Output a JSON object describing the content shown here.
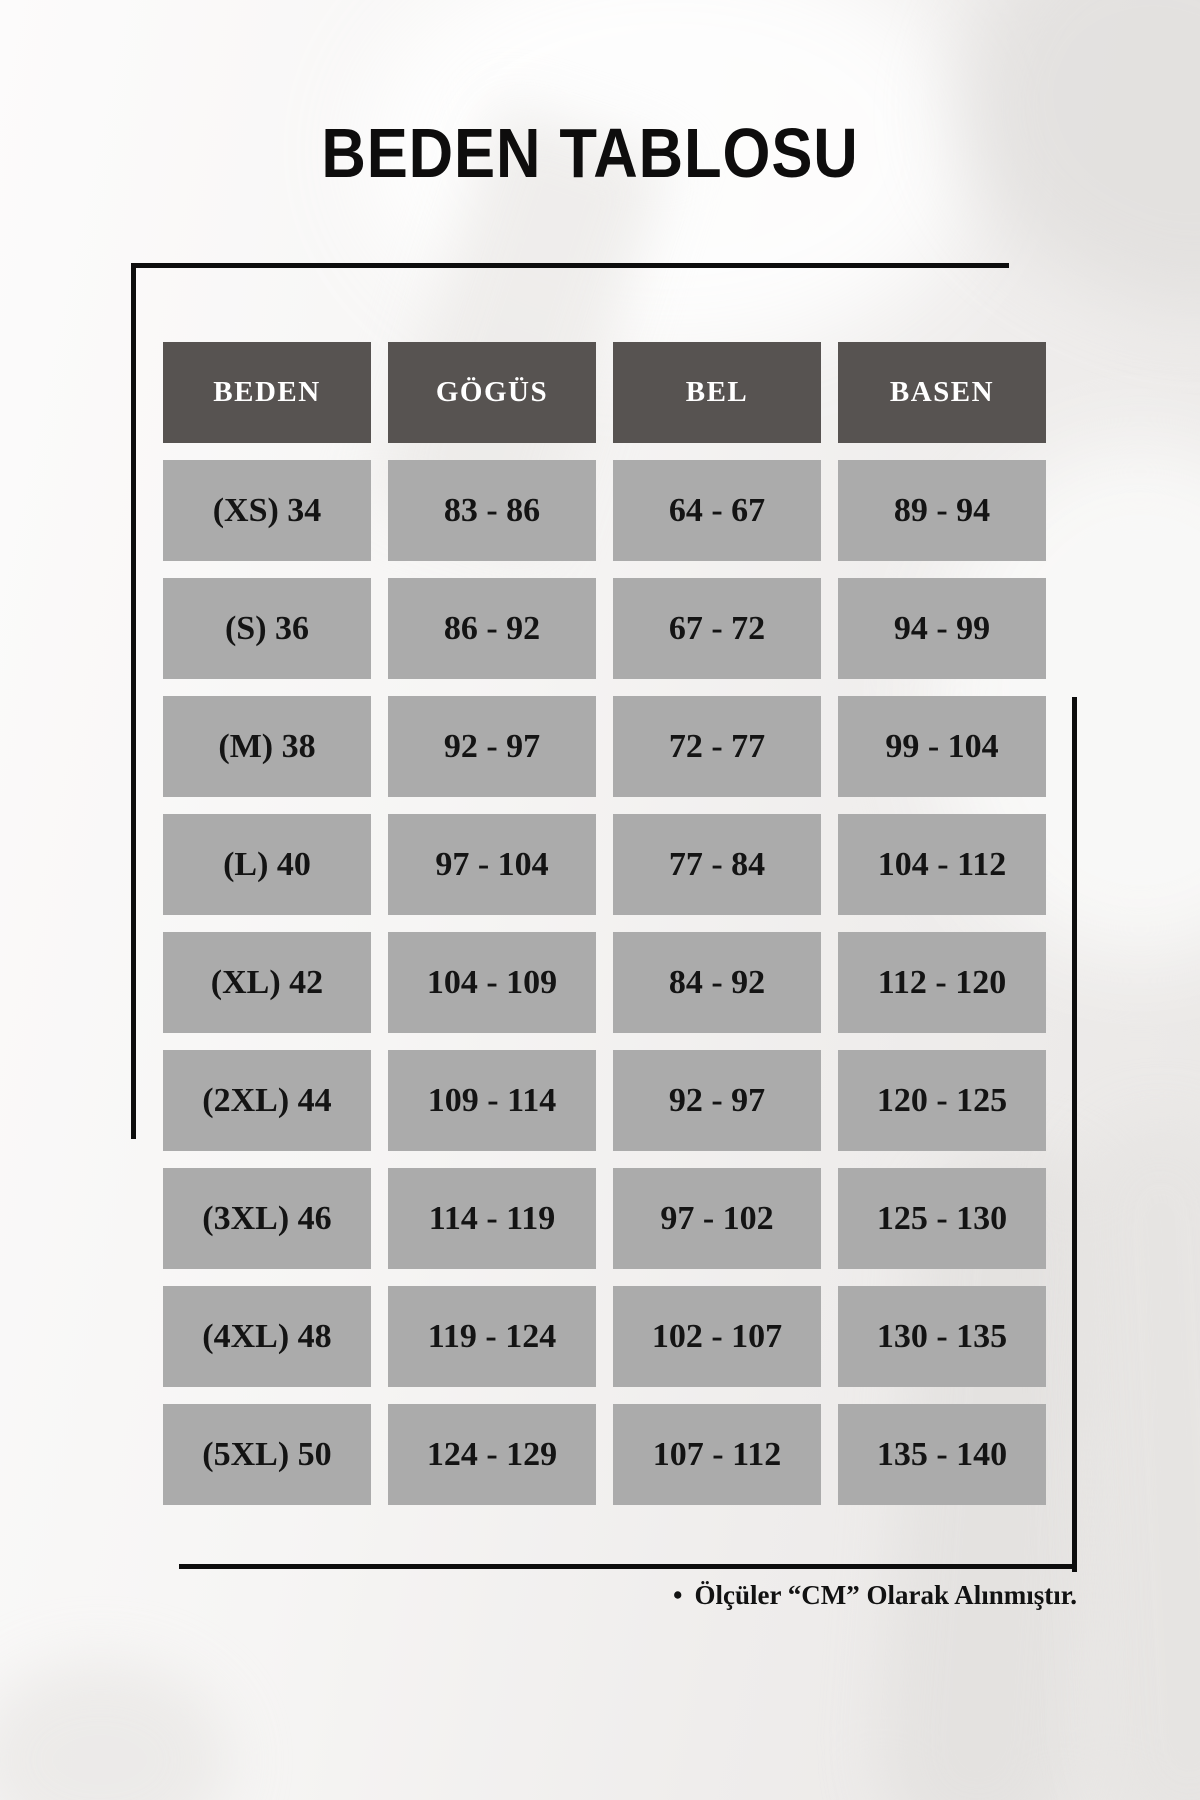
{
  "page": {
    "title": "BEDEN TABLOSU",
    "note_bullet": "•",
    "note": "Ölçüler “CM” Olarak Alınmıştır."
  },
  "table": {
    "columns": [
      "BEDEN",
      "GÖGÜS",
      "BEL",
      "BASEN"
    ],
    "rows": [
      [
        "(XS) 34",
        "83 - 86",
        "64 - 67",
        "89 - 94"
      ],
      [
        "(S) 36",
        "86 - 92",
        "67 - 72",
        "94 - 99"
      ],
      [
        "(M) 38",
        "92 - 97",
        "72 - 77",
        "99 - 104"
      ],
      [
        "(L) 40",
        "97 - 104",
        "77 - 84",
        "104 - 112"
      ],
      [
        "(XL) 42",
        "104 - 109",
        "84 - 92",
        "112 - 120"
      ],
      [
        "(2XL) 44",
        "109 - 114",
        "92 - 97",
        "120 - 125"
      ],
      [
        "(3XL) 46",
        "114 - 119",
        "97 - 102",
        "125 - 130"
      ],
      [
        "(4XL) 48",
        "119 - 124",
        "102 - 107",
        "130 - 135"
      ],
      [
        "(5XL) 50",
        "124 - 129",
        "107 - 112",
        "135 - 140"
      ]
    ]
  },
  "colors": {
    "header_bg": "#575351",
    "header_text": "#ffffff",
    "cell_bg": "#ababab",
    "cell_text": "#141414",
    "frame_line": "#0d0d0d",
    "background": "#f2f1f0"
  }
}
